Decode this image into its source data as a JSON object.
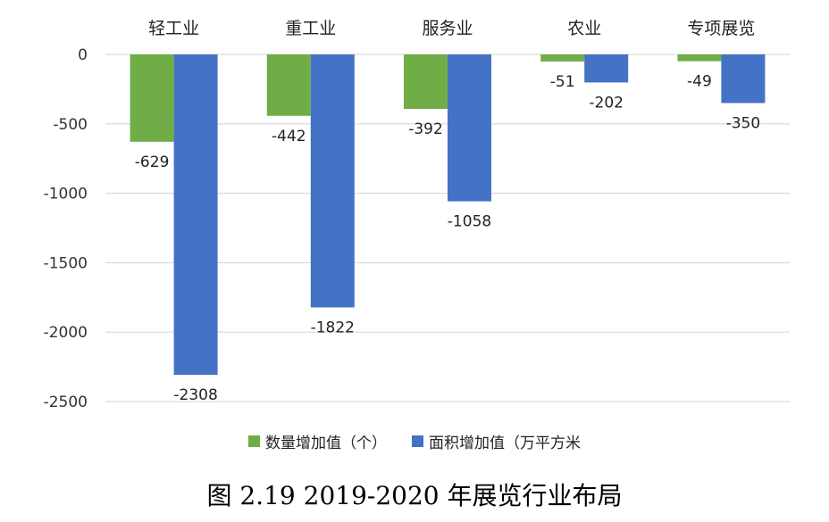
{
  "chart_data": {
    "type": "bar",
    "categories": [
      "轻工业",
      "重工业",
      "服务业",
      "农业",
      "专项展览"
    ],
    "series": [
      {
        "name": "数量增加值（个）",
        "values": [
          -629,
          -442,
          -392,
          -51,
          -49
        ],
        "color": "#70ad47"
      },
      {
        "name": "面积增加值（万平方米",
        "values": [
          -2308,
          -1822,
          -1058,
          -202,
          -350
        ],
        "color": "#4472c4"
      }
    ],
    "yticks": [
      0,
      -500,
      -1000,
      -1500,
      -2000,
      -2500
    ],
    "ylim": [
      -2500,
      0
    ],
    "grid": true,
    "legend": "bottom",
    "category_axis": "top"
  },
  "caption": "图 2.19  2019-2020 年展览行业布局"
}
